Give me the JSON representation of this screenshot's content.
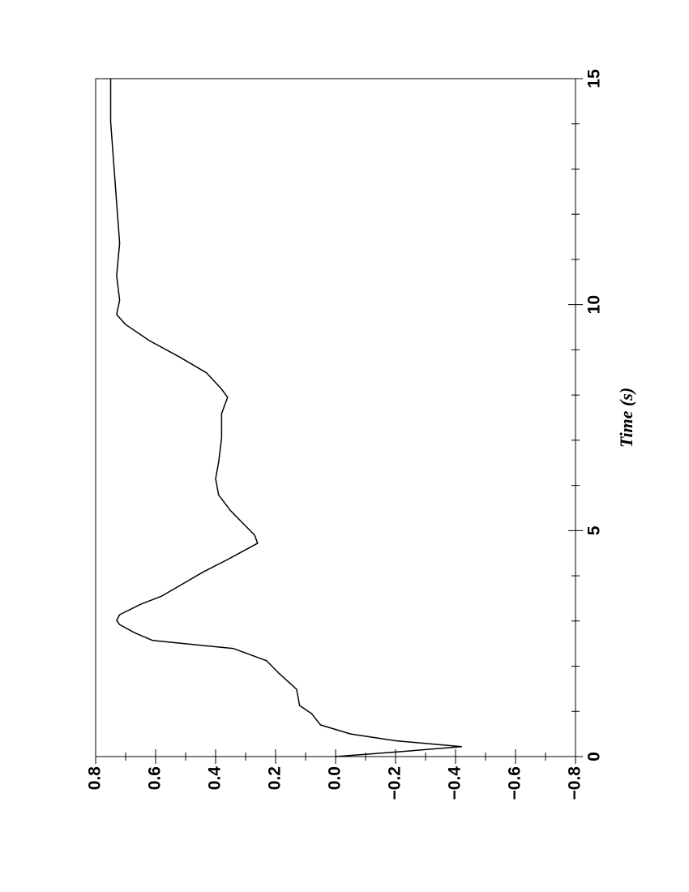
{
  "chart_data": {
    "type": "line",
    "x_label": "Time (s)",
    "x": [
      0,
      0.1,
      0.22,
      0.35,
      0.5,
      0.7,
      0.95,
      1.13,
      1.49,
      1.85,
      2.12,
      2.39,
      2.57,
      2.74,
      2.92,
      3.01,
      3.14,
      3.37,
      3.55,
      3.82,
      4.09,
      4.36,
      4.54,
      4.72,
      4.9,
      5.17,
      5.44,
      5.79,
      6.15,
      6.51,
      7.05,
      7.59,
      7.95,
      8.13,
      8.49,
      8.84,
      9.2,
      9.56,
      9.78,
      10.1,
      10.64,
      11.36,
      12.25,
      13.15,
      14.05,
      15
    ],
    "series": [
      {
        "color": "#000000",
        "values": [
          0,
          -0.2,
          -0.42,
          -0.2,
          -0.05,
          0.05,
          0.08,
          0.12,
          0.13,
          0.19,
          0.23,
          0.34,
          0.61,
          0.67,
          0.72,
          0.73,
          0.72,
          0.65,
          0.58,
          0.51,
          0.44,
          0.36,
          0.31,
          0.26,
          0.27,
          0.31,
          0.35,
          0.39,
          0.4,
          0.39,
          0.38,
          0.38,
          0.36,
          0.38,
          0.43,
          0.52,
          0.62,
          0.7,
          0.73,
          0.72,
          0.73,
          0.72,
          0.73,
          0.74,
          0.75,
          0.75
        ]
      }
    ],
    "xlim": [
      0,
      15
    ],
    "xticks": [
      0,
      5,
      10,
      15
    ],
    "xminorticks": [
      1,
      2,
      3,
      4,
      6,
      7,
      8,
      9,
      11,
      12,
      13,
      14
    ],
    "ylim": [
      -0.8,
      0.8
    ],
    "yticks": [
      {
        "value": -0.8,
        "label": "−0.8"
      },
      {
        "value": -0.6,
        "label": "−0.6"
      },
      {
        "value": -0.4,
        "label": "−0.4"
      },
      {
        "value": -0.2,
        "label": "−0.2"
      },
      {
        "value": 0,
        "label": "0.0"
      },
      0.2,
      0.4,
      0.6,
      0.8
    ],
    "yminorticks": [
      -0.7,
      -0.5,
      -0.3,
      -0.1,
      0.1,
      0.3,
      0.5,
      0.7
    ]
  }
}
